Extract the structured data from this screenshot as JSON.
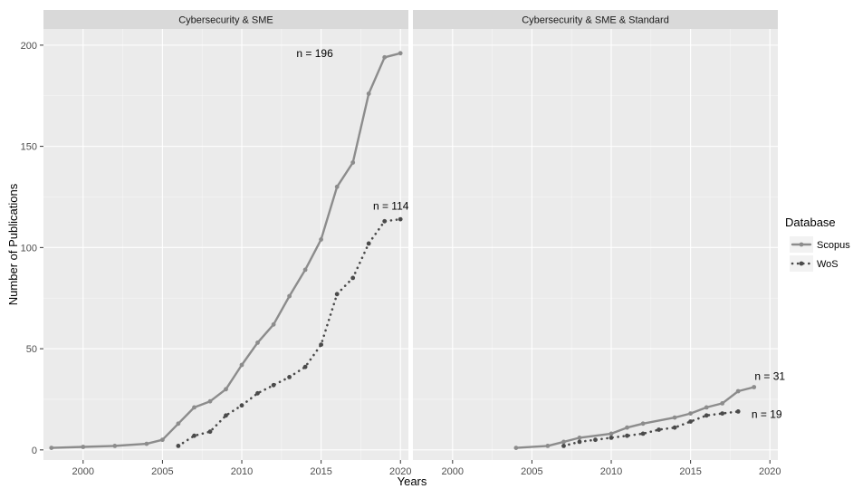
{
  "chart_data": {
    "type": "line",
    "xlabel": "Years",
    "ylabel": "Number of Publications",
    "xlim": [
      1997.5,
      2020.5
    ],
    "ylim": [
      -5,
      208
    ],
    "x_ticks": [
      2000,
      2005,
      2010,
      2015,
      2020
    ],
    "y_ticks": [
      0,
      50,
      100,
      150,
      200
    ],
    "grid": true,
    "legend": {
      "title": "Database",
      "placement": "right",
      "entries": [
        "Scopus",
        "WoS"
      ]
    },
    "colors": {
      "Scopus": "#8c8c8c",
      "WoS": "#4a4a4a",
      "panel_bg": "#ebebeb",
      "strip_bg": "#d9d9d9"
    },
    "panels": [
      {
        "strip": "Cybersecurity & SME",
        "series": [
          {
            "name": "Scopus",
            "style": "solid",
            "x": [
              1998,
              2000,
              2002,
              2004,
              2005,
              2006,
              2007,
              2008,
              2009,
              2010,
              2011,
              2012,
              2013,
              2014,
              2015,
              2016,
              2017,
              2018,
              2019,
              2020
            ],
            "y": [
              1,
              1.5,
              2,
              3,
              5,
              13,
              21,
              24,
              30,
              42,
              53,
              62,
              76,
              89,
              104,
              130,
              142,
              176,
              194,
              196
            ]
          },
          {
            "name": "WoS",
            "style": "dotted",
            "x": [
              2006,
              2007,
              2008,
              2009,
              2010,
              2011,
              2012,
              2013,
              2014,
              2015,
              2016,
              2017,
              2018,
              2019,
              2020
            ],
            "y": [
              2,
              7,
              9,
              17,
              22,
              28,
              32,
              36,
              41,
              52,
              77,
              85,
              102,
              113,
              114
            ]
          }
        ],
        "annotations": [
          {
            "text": "n = 196",
            "x": 2014.6,
            "y": 196
          },
          {
            "text": "n = 114",
            "x": 2019.4,
            "y": 120.5
          }
        ]
      },
      {
        "strip": "Cybersecurity & SME & Standard",
        "series": [
          {
            "name": "Scopus",
            "style": "solid",
            "x": [
              2004,
              2006,
              2007,
              2008,
              2010,
              2011,
              2012,
              2014,
              2015,
              2016,
              2017,
              2018,
              2019
            ],
            "y": [
              1,
              2,
              4,
              6,
              8,
              11,
              13,
              16,
              18,
              21,
              23,
              29,
              31
            ]
          },
          {
            "name": "WoS",
            "style": "dotted",
            "x": [
              2007,
              2008,
              2009,
              2010,
              2011,
              2012,
              2013,
              2014,
              2015,
              2016,
              2017,
              2018
            ],
            "y": [
              2,
              4,
              5,
              6,
              7,
              8,
              10,
              11,
              14,
              17,
              18,
              19
            ]
          }
        ],
        "annotations": [
          {
            "text": "n = 31",
            "x": 2020.0,
            "y": 36.5
          },
          {
            "text": "n = 19",
            "x": 2019.8,
            "y": 17.5
          }
        ]
      }
    ]
  }
}
